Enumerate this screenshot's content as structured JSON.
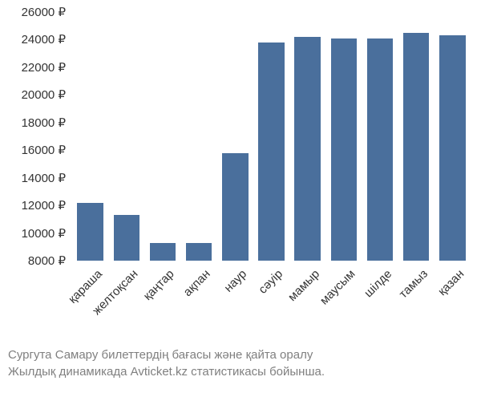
{
  "chart": {
    "type": "bar",
    "categories": [
      "қараша",
      "желтоқсан",
      "қаңтар",
      "ақпан",
      "наур",
      "сәуір",
      "мамыр",
      "маусым",
      "шілде",
      "тамыз",
      "қазан"
    ],
    "values": [
      12200,
      11300,
      9300,
      9300,
      15800,
      23800,
      24200,
      24100,
      24100,
      24500,
      24300
    ],
    "bar_color": "#4a6f9c",
    "ylim": [
      8000,
      26000
    ],
    "ytick_step": 2000,
    "ytick_suffix": " ₽",
    "background_color": "#ffffff",
    "tick_fontsize": 15,
    "tick_color": "#333333",
    "bar_width_ratio": 0.72,
    "x_label_rotation": -45
  },
  "caption": {
    "line1": "Сургута Самару билеттердің бағасы және қайта оралу",
    "line2": "Жылдық динамикада Avticket.kz статистикасы бойынша.",
    "color": "#808080",
    "fontsize": 15
  }
}
